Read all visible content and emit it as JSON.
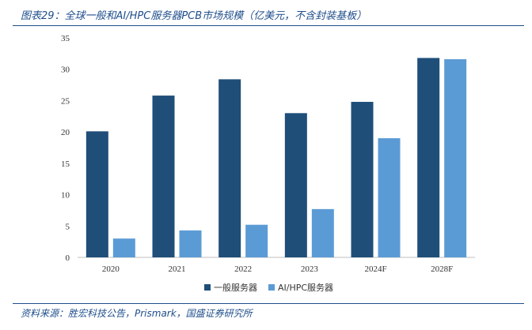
{
  "figure": {
    "title": "图表29：全球一般和AI/HPC服务器PCB市场规模（亿美元，不含封装基板）",
    "source": "资料来源：胜宏科技公告，Prismark，国盛证券研究所"
  },
  "colors": {
    "accent": "#1f4e8c",
    "series_general": "#1f4e79",
    "series_ai": "#5b9bd5",
    "axis": "#bfbfbf"
  },
  "chart_data": {
    "type": "bar",
    "categories": [
      "2020",
      "2021",
      "2022",
      "2023",
      "2024F",
      "2028F"
    ],
    "series": [
      {
        "name": "一般服务器",
        "values": [
          20.1,
          25.8,
          28.4,
          23.0,
          24.8,
          31.8
        ]
      },
      {
        "name": "AI/HPC服务器",
        "values": [
          3.0,
          4.3,
          5.2,
          7.7,
          19.0,
          31.6
        ]
      }
    ],
    "ylim": [
      0,
      35
    ],
    "yticks": [
      0,
      5,
      10,
      15,
      20,
      25,
      30,
      35
    ],
    "grid": false,
    "legend": "bottom"
  }
}
